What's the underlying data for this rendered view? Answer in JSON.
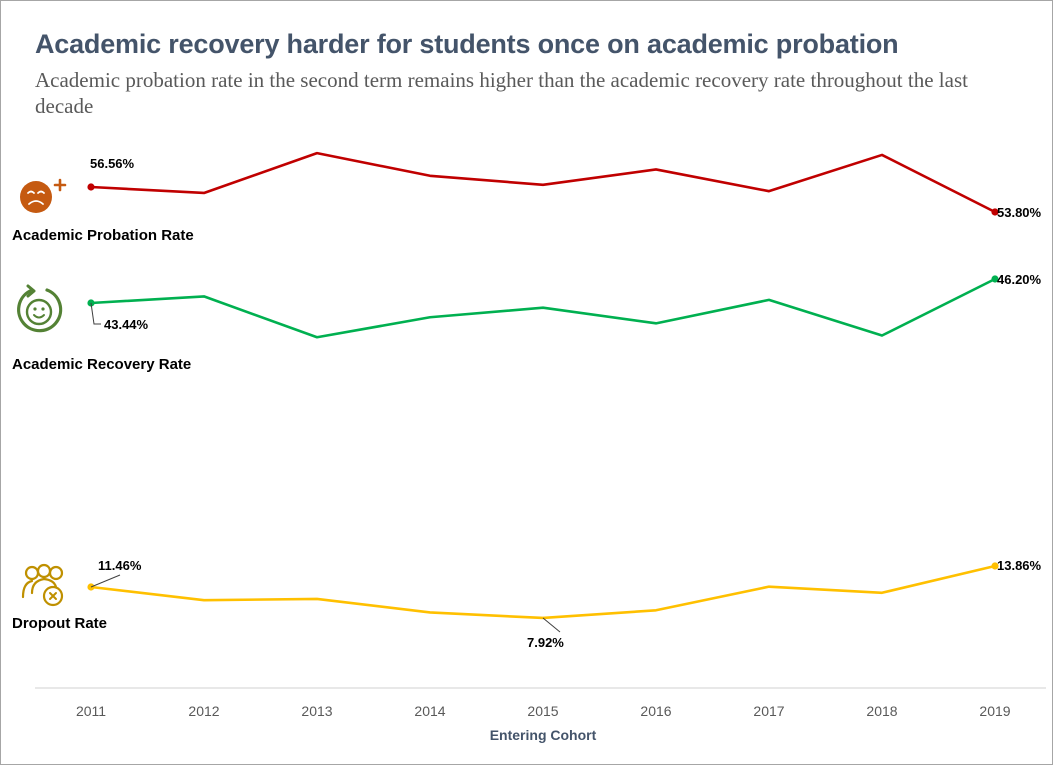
{
  "header": {
    "title": "Academic recovery harder for students once on academic probation",
    "subtitle": "Academic probation rate in the second term remains higher than the academic recovery rate throughout the last decade"
  },
  "chart_data": {
    "type": "line",
    "title": "Academic recovery harder for students once on academic probation",
    "subtitle": "Academic probation rate in the second term remains higher than the academic recovery rate throughout the last decade",
    "xlabel": "Entering Cohort",
    "ylabel": "",
    "categories": [
      "2011",
      "2012",
      "2013",
      "2014",
      "2015",
      "2016",
      "2017",
      "2018",
      "2019"
    ],
    "grid": false,
    "legend": "left-side labels beside each line",
    "series": [
      {
        "name": "Academic Probation Rate",
        "color": "#c00000",
        "icon": "sad-face-icon",
        "values": [
          56.56,
          55.9,
          60.3,
          57.8,
          56.8,
          58.5,
          56.1,
          60.1,
          53.8
        ],
        "labels": [
          {
            "index": 0,
            "text": "56.56%"
          },
          {
            "index": 8,
            "text": "53.80%"
          }
        ]
      },
      {
        "name": "Academic Recovery Rate",
        "color": "#00b050",
        "icon": "recovery-smile-icon",
        "values": [
          43.44,
          44.2,
          39.5,
          41.8,
          42.9,
          41.1,
          43.8,
          39.7,
          46.2
        ],
        "labels": [
          {
            "index": 0,
            "text": "43.44%"
          },
          {
            "index": 8,
            "text": "46.20%"
          }
        ]
      },
      {
        "name": "Dropout Rate",
        "color": "#ffc000",
        "icon": "dropout-group-icon",
        "values": [
          11.46,
          9.95,
          10.1,
          8.55,
          7.92,
          8.8,
          11.5,
          10.8,
          13.86
        ],
        "labels": [
          {
            "index": 0,
            "text": "11.46%"
          },
          {
            "index": 4,
            "text": "7.92%"
          },
          {
            "index": 8,
            "text": "13.86%"
          }
        ]
      }
    ]
  }
}
